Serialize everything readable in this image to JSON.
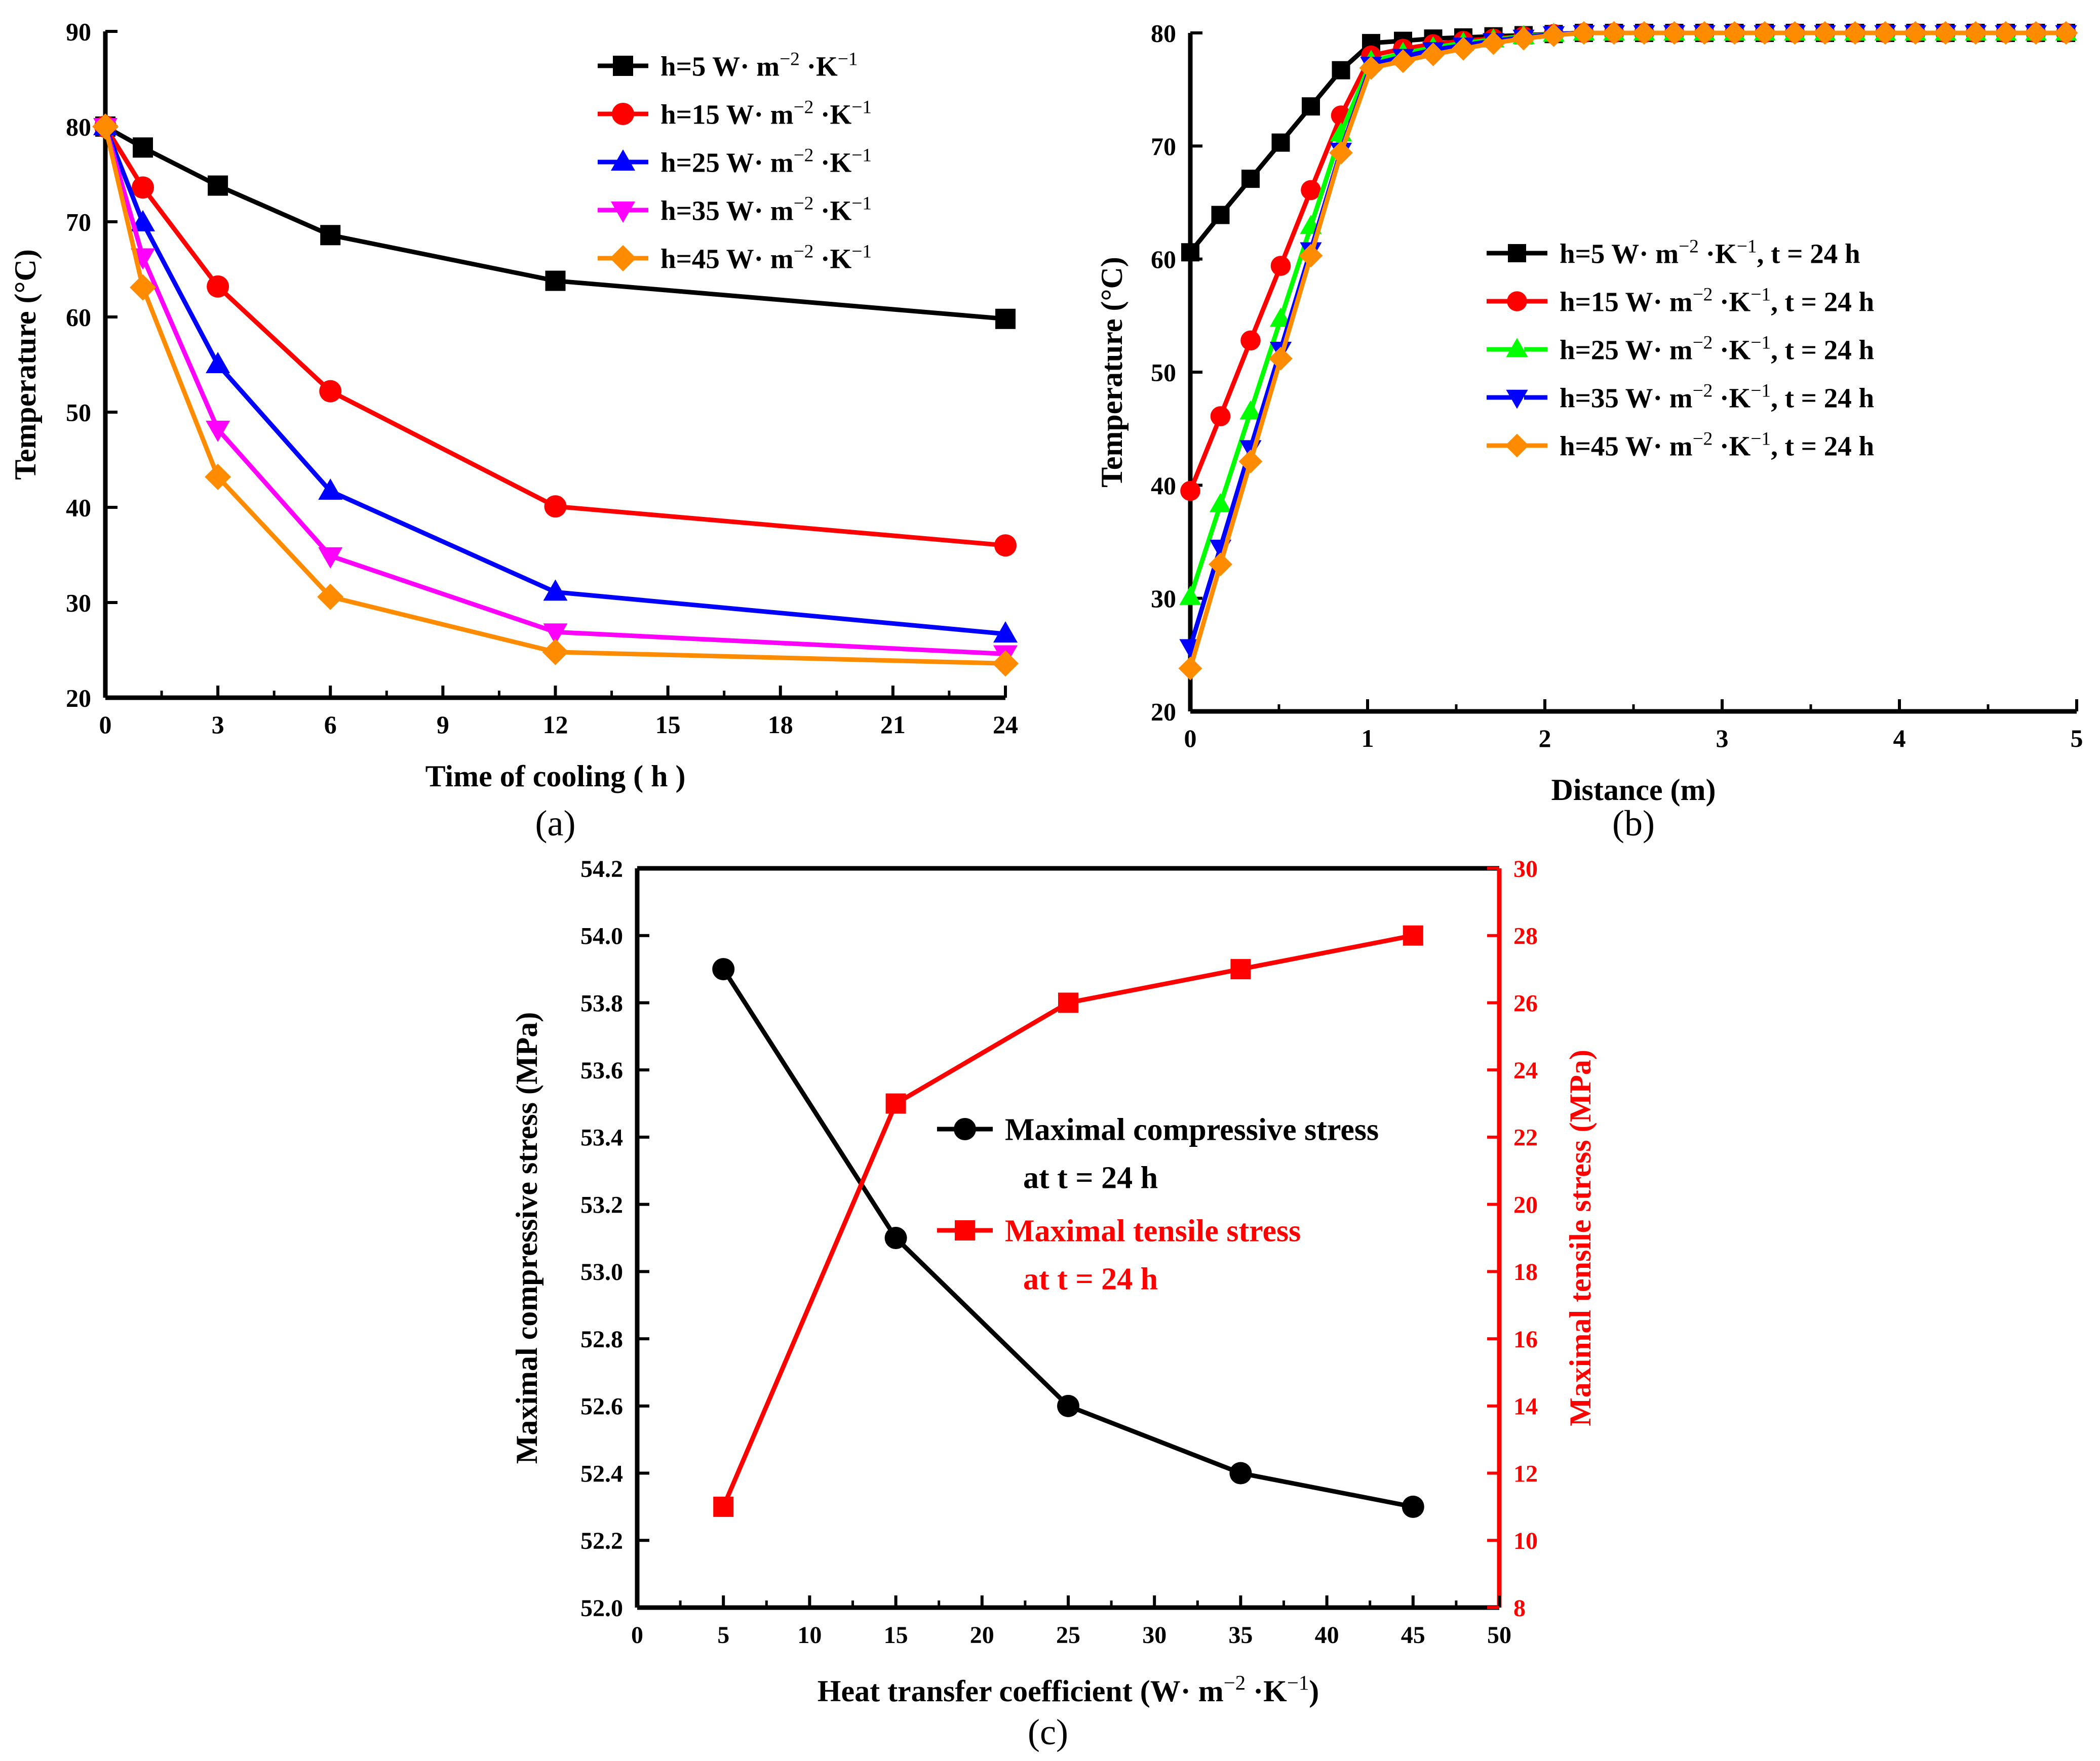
{
  "chart_data": [
    {
      "id": "a",
      "type": "line",
      "panel_label": "(a)",
      "xlabel": "Time of cooling ( h )",
      "ylabel": "Temperature (°C)",
      "xlim": [
        0,
        24
      ],
      "ylim": [
        20,
        90
      ],
      "xticks": [
        "0",
        "3",
        "6",
        "9",
        "12",
        "15",
        "18",
        "21",
        "24"
      ],
      "yticks": [
        "20",
        "30",
        "40",
        "50",
        "60",
        "70",
        "80",
        "90"
      ],
      "legend_position": "top-right",
      "x": [
        0,
        1,
        3,
        6,
        12,
        24
      ],
      "series": [
        {
          "name": "h=5 W· m⁻² ·K⁻¹",
          "color": "#000000",
          "marker": "square",
          "values": [
            80,
            77.8,
            73.8,
            68.6,
            63.8,
            59.8
          ]
        },
        {
          "name": "h=15 W· m⁻² ·K⁻¹",
          "color": "#ff0000",
          "marker": "circle",
          "values": [
            80,
            73.6,
            63.2,
            52.2,
            40.1,
            36.0
          ]
        },
        {
          "name": "h=25 W· m⁻² ·K⁻¹",
          "color": "#0000ff",
          "marker": "triangle-up",
          "values": [
            80,
            69.9,
            55.0,
            41.7,
            31.1,
            26.7
          ]
        },
        {
          "name": "h=35 W· m⁻² ·K⁻¹",
          "color": "#ff00ff",
          "marker": "triangle-down",
          "values": [
            80,
            66.3,
            48.2,
            34.9,
            26.9,
            24.6
          ]
        },
        {
          "name": "h=45 W· m⁻² ·K⁻¹",
          "color": "#ff8c00",
          "marker": "diamond",
          "values": [
            80,
            63.1,
            43.2,
            30.6,
            24.8,
            23.6
          ]
        }
      ]
    },
    {
      "id": "b",
      "type": "line",
      "panel_label": "(b)",
      "xlabel": "Distance (m)",
      "ylabel": "Temperature (°C)",
      "xlim": [
        0,
        5
      ],
      "ylim": [
        20,
        80
      ],
      "xticks": [
        "0",
        "1",
        "2",
        "3",
        "4",
        "5"
      ],
      "yticks": [
        "20",
        "30",
        "40",
        "50",
        "60",
        "70",
        "80"
      ],
      "legend_position": "right",
      "x": [
        0,
        0.17,
        0.34,
        0.51,
        0.68,
        0.85,
        1.02,
        1.2,
        1.37,
        1.54,
        1.71,
        1.88,
        2.05,
        2.22,
        2.39,
        2.56,
        2.73,
        2.9,
        3.07,
        3.24,
        3.41,
        3.58,
        3.75,
        3.92,
        4.09,
        4.26,
        4.43,
        4.6,
        4.77,
        4.94
      ],
      "series": [
        {
          "name": "h=5 W· m⁻² ·K⁻¹, t = 24 h",
          "color": "#000000",
          "marker": "square",
          "values": [
            60.6,
            63.9,
            67.1,
            70.3,
            73.5,
            76.7,
            79.1,
            79.3,
            79.5,
            79.6,
            79.7,
            79.8,
            79.9,
            80,
            80,
            80,
            80,
            80,
            80,
            80,
            80,
            80,
            80,
            80,
            80,
            80,
            80,
            80,
            80,
            80
          ]
        },
        {
          "name": "h=15 W· m⁻² ·K⁻¹, t = 24 h",
          "color": "#ff0000",
          "marker": "circle",
          "values": [
            39.5,
            46.1,
            52.8,
            59.4,
            66.1,
            72.7,
            78.0,
            78.6,
            79.0,
            79.3,
            79.5,
            79.7,
            79.9,
            80,
            80,
            80,
            80,
            80,
            80,
            80,
            80,
            80,
            80,
            80,
            80,
            80,
            80,
            80,
            80,
            80
          ]
        },
        {
          "name": "h=25 W· m⁻² ·K⁻¹, t = 24 h",
          "color": "#00ff00",
          "marker": "triangle-up",
          "values": [
            30.1,
            38.3,
            46.5,
            54.7,
            62.9,
            71.1,
            77.5,
            78.2,
            78.7,
            79.1,
            79.4,
            79.7,
            79.9,
            80,
            80,
            80,
            80,
            80,
            80,
            80,
            80,
            80,
            80,
            80,
            80,
            80,
            80,
            80,
            80,
            80
          ]
        },
        {
          "name": "h=35 W· m⁻² ·K⁻¹, t = 24 h",
          "color": "#0000ff",
          "marker": "triangle-down",
          "values": [
            25.7,
            34.5,
            43.3,
            52.0,
            60.8,
            69.6,
            77.2,
            77.9,
            78.5,
            78.9,
            79.3,
            79.6,
            79.9,
            80,
            80,
            80,
            80,
            80,
            80,
            80,
            80,
            80,
            80,
            80,
            80,
            80,
            80,
            80,
            80,
            80
          ]
        },
        {
          "name": "h=45 W· m⁻² ·K⁻¹, t = 24 h",
          "color": "#ff8c00",
          "marker": "diamond",
          "values": [
            23.8,
            33.0,
            42.1,
            51.2,
            60.3,
            69.4,
            76.9,
            77.5,
            78.1,
            78.6,
            79.1,
            79.5,
            79.8,
            80,
            80,
            80,
            80,
            80,
            80,
            80,
            80,
            80,
            80,
            80,
            80,
            80,
            80,
            80,
            80,
            80
          ]
        }
      ]
    },
    {
      "id": "c",
      "type": "line",
      "panel_label": "(c)",
      "xlabel": "Heat transfer coefficient (W· m⁻² ·K⁻¹)",
      "ylabel_left": "Maximal  compressive stress (MPa)",
      "ylabel_right": "Maximal  tensile stress (MPa)",
      "xlim": [
        0,
        50
      ],
      "ylim_left": [
        52.0,
        54.2
      ],
      "ylim_right": [
        8,
        30
      ],
      "xticks": [
        "0",
        "5",
        "10",
        "15",
        "20",
        "25",
        "30",
        "35",
        "40",
        "45",
        "50"
      ],
      "yticks_left": [
        "52.0",
        "52.2",
        "52.4",
        "52.6",
        "52.8",
        "53.0",
        "53.2",
        "53.4",
        "53.6",
        "53.8",
        "54.0",
        "54.2"
      ],
      "yticks_right": [
        "8",
        "10",
        "12",
        "14",
        "16",
        "18",
        "20",
        "22",
        "24",
        "26",
        "28",
        "30"
      ],
      "legend_position": "center-right",
      "x": [
        5,
        15,
        25,
        35,
        45
      ],
      "series": [
        {
          "name": "Maximal  compressive stress",
          "name_line2": "at t = 24 h",
          "axis": "left",
          "color": "#000000",
          "marker": "circle",
          "values": [
            53.9,
            53.1,
            52.6,
            52.4,
            52.3
          ]
        },
        {
          "name": "Maximal  tensile stress",
          "name_line2": "at t = 24 h",
          "axis": "right",
          "color": "#ff0000",
          "marker": "square",
          "values": [
            11,
            23,
            26,
            27,
            28
          ]
        }
      ]
    }
  ]
}
